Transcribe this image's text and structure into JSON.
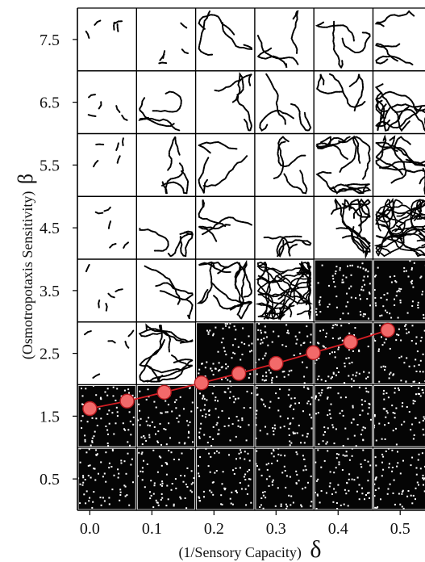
{
  "chart_data": {
    "type": "scatter",
    "title": "",
    "xlabel": "(1/Sensory Capacity)",
    "xlabel_symbol": "δ",
    "ylabel": "(Osmotropotaxis Sensitivity)",
    "ylabel_symbol": "β",
    "x_ticks": [
      "0.0",
      "0.1",
      "0.2",
      "0.3",
      "0.4",
      "0.5"
    ],
    "y_ticks": [
      "7.5",
      "6.5",
      "5.5",
      "4.5",
      "3.5",
      "2.5",
      "1.5",
      "0.5"
    ],
    "xlim": [
      -0.02,
      0.54
    ],
    "ylim": [
      0,
      8
    ],
    "grid_x_centers": [
      0.0,
      0.1,
      0.2,
      0.3,
      0.4,
      0.5
    ],
    "grid_y_centers": [
      7.5,
      6.5,
      5.5,
      4.5,
      3.5,
      2.5,
      1.5,
      0.5
    ],
    "panel_states": [
      [
        "sparse",
        "sparse",
        "trails",
        "trails",
        "trails",
        "trails"
      ],
      [
        "sparse",
        "trails",
        "trails",
        "trails",
        "trails",
        "network"
      ],
      [
        "sparse",
        "trails",
        "trails",
        "trails",
        "network",
        "network"
      ],
      [
        "sparse",
        "trails",
        "trails",
        "trails",
        "network",
        "dense-network"
      ],
      [
        "sparse",
        "trails",
        "network",
        "dense-network",
        "disordered",
        "disordered"
      ],
      [
        "sparse",
        "network",
        "disordered",
        "disordered",
        "disordered",
        "disordered"
      ],
      [
        "disordered",
        "disordered",
        "disordered",
        "disordered",
        "disordered",
        "disordered"
      ],
      [
        "disordered",
        "disordered",
        "disordered",
        "disordered",
        "disordered",
        "disordered"
      ]
    ],
    "series": [
      {
        "x": [
          0.0,
          0.06,
          0.12,
          0.18,
          0.24,
          0.3,
          0.36,
          0.42,
          0.48
        ],
        "y": [
          1.62,
          1.74,
          1.88,
          2.03,
          2.18,
          2.34,
          2.51,
          2.68,
          2.87
        ]
      }
    ],
    "colors": {
      "marker_fill": "#f26a6a",
      "marker_edge": "#b3181d",
      "line": "#d61e24",
      "disordered_background": "#050505",
      "grid_lines": "#e6e6e6"
    },
    "grid": false
  }
}
